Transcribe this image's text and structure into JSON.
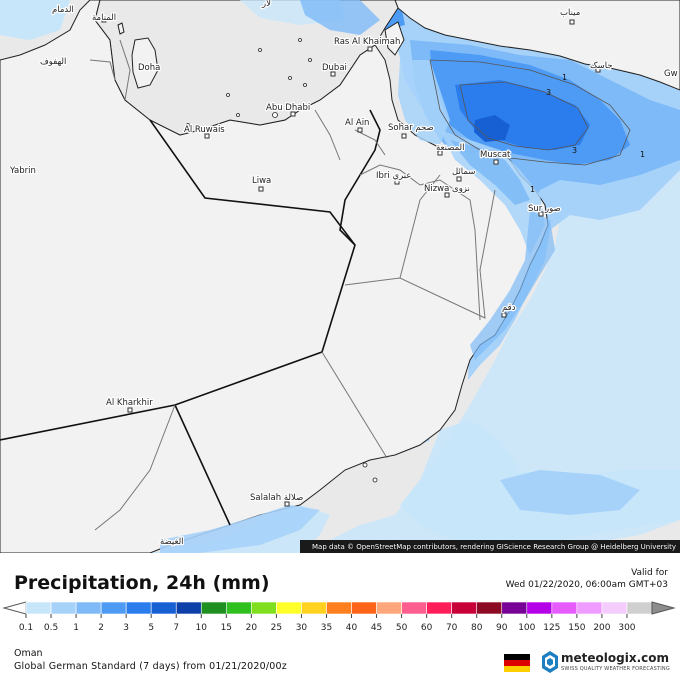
{
  "map": {
    "labels": {
      "dammam": "الدمام",
      "manama": "المنامة",
      "hofuf": "الهفوف",
      "doha": "Doha",
      "dubai": "Dubai",
      "ras_al_khaimah": "Ras Al Khaimah",
      "abu_dhabi": "Abu Dhabi",
      "al_ruwais": "Al Ruwais",
      "al_ain": "Al Ain",
      "sohar": "Sohar صحم",
      "al_musannah": "المصنعة",
      "muscat": "Muscat",
      "ibri": "Ibri عبري",
      "samail": "سمائل",
      "nizwa": "Nizwa نزوى",
      "sur": "Sur صور",
      "yabrin": "Yabrin",
      "liwa": "Liwa",
      "duqm": "دقم",
      "al_kharkhir": "Al Kharkhir",
      "salalah": "Salalah صلالة",
      "ghaydah": "الغيضة",
      "jask": "جاسک",
      "gwadar": "Gw",
      "iran_top": "لار",
      "iran_top_right": "ميناب"
    },
    "contours": [
      "1",
      "3",
      "3",
      "1",
      "1"
    ],
    "attribution": "Map data © OpenStreetMap contributors, rendering GIScience Research Group @ Heidelberg University"
  },
  "footer": {
    "title": "Precipitation, 24h (mm)",
    "valid_label": "Valid for",
    "valid_time": "Wed 01/22/2020, 06:00am GMT+03",
    "region": "Oman",
    "model": "Global German Standard (7 days) from 01/21/2020/00z",
    "brand_name": "meteologix.com",
    "brand_tagline": "SWISS QUALITY WEATHER FORECASTING",
    "flag_colors": [
      "#000000",
      "#dd0000",
      "#ffce00"
    ]
  },
  "legend": {
    "labels": [
      "0.1",
      "0.5",
      "1",
      "2",
      "3",
      "5",
      "7",
      "10",
      "15",
      "20",
      "25",
      "30",
      "35",
      "40",
      "45",
      "50",
      "60",
      "70",
      "80",
      "90",
      "100",
      "125",
      "150",
      "200",
      "300"
    ],
    "colors": [
      "#c8e6fa",
      "#a6d2fa",
      "#7dbaf7",
      "#4e9bf5",
      "#2b7cec",
      "#1660d4",
      "#0d3fa8",
      "#1f8f1f",
      "#2fbf1f",
      "#7fdf1f",
      "#ffff2a",
      "#ffd21f",
      "#ff7f1f",
      "#ff6418",
      "#ffa67a",
      "#ff5f8f",
      "#ff1e5a",
      "#c8003a",
      "#8c0a23",
      "#780096",
      "#b400e6",
      "#e65cff",
      "#ee9cff",
      "#f5cdfd",
      "#cfcfcf"
    ],
    "end_left_color": "#ffffff",
    "end_right_color": "#8c8c8c"
  }
}
